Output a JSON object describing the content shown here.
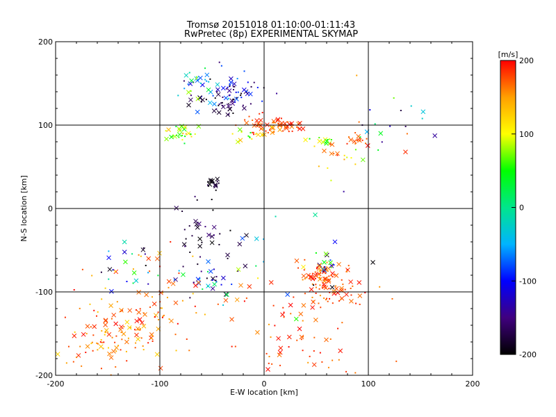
{
  "chart_data": {
    "type": "scatter",
    "title": "Tromsø 20151018 01:10:00-01:11:43",
    "subtitle": "RwPretec (8p) EXPERIMENTAL SKYMAP",
    "xlabel": "E-W location [km]",
    "ylabel": "N-S location [km]",
    "xlim": [
      -200,
      200
    ],
    "ylim": [
      -200,
      200
    ],
    "x_ticks": [
      "-200",
      "-100",
      "0",
      "100",
      "200"
    ],
    "y_ticks": [
      "-200",
      "-100",
      "0",
      "100",
      "200"
    ],
    "grid_lines": [
      -100,
      0,
      100
    ],
    "colorbar": {
      "label": "[m/s]",
      "range": [
        -200,
        200
      ],
      "ticks": [
        "200",
        "100",
        "0",
        "-100",
        "-200"
      ],
      "colors": [
        "#000000",
        "#40007f",
        "#0000ff",
        "#00b4ff",
        "#00e68c",
        "#00ff00",
        "#ffff00",
        "#ffa000",
        "#ff0000"
      ]
    },
    "markers": {
      "x": "meteor echo (large)",
      "dot": "meteor echo (small)"
    },
    "clusters": [
      {
        "cx": -45,
        "cy": 145,
        "sx": 18,
        "sy": 12,
        "n": 40,
        "vmin": -200,
        "vmax": -30
      },
      {
        "cx": -20,
        "cy": 140,
        "sx": 15,
        "sy": 8,
        "n": 30,
        "vmin": -200,
        "vmax": -60
      },
      {
        "cx": -40,
        "cy": 122,
        "sx": 8,
        "sy": 6,
        "n": 25,
        "vmin": -200,
        "vmax": -150
      },
      {
        "cx": -70,
        "cy": 150,
        "sx": 10,
        "sy": 10,
        "n": 15,
        "vmin": -80,
        "vmax": 100
      },
      {
        "cx": 0,
        "cy": 100,
        "sx": 12,
        "sy": 6,
        "n": 45,
        "vmin": 150,
        "vmax": 200
      },
      {
        "cx": 25,
        "cy": 98,
        "sx": 8,
        "sy": 3,
        "n": 25,
        "vmin": 150,
        "vmax": 200
      },
      {
        "cx": -80,
        "cy": 90,
        "sx": 8,
        "sy": 6,
        "n": 30,
        "vmin": 30,
        "vmax": 140
      },
      {
        "cx": -15,
        "cy": 88,
        "sx": 14,
        "sy": 5,
        "n": 18,
        "vmin": 40,
        "vmax": 140
      },
      {
        "cx": 55,
        "cy": 80,
        "sx": 8,
        "sy": 3,
        "n": 12,
        "vmin": 40,
        "vmax": 120
      },
      {
        "cx": 90,
        "cy": 80,
        "sx": 10,
        "sy": 5,
        "n": 18,
        "vmin": 150,
        "vmax": 200
      },
      {
        "cx": 75,
        "cy": 60,
        "sx": 20,
        "sy": 12,
        "n": 16,
        "vmin": 50,
        "vmax": 200
      },
      {
        "cx": -48,
        "cy": 30,
        "sx": 3,
        "sy": 4,
        "n": 18,
        "vmin": -200,
        "vmax": -170
      },
      {
        "cx": -130,
        "cy": -70,
        "sx": 20,
        "sy": 15,
        "n": 30,
        "vmin": -200,
        "vmax": 200
      },
      {
        "cx": -60,
        "cy": -35,
        "sx": 20,
        "sy": 20,
        "n": 40,
        "vmin": -200,
        "vmax": -150
      },
      {
        "cx": -55,
        "cy": -85,
        "sx": 15,
        "sy": 12,
        "n": 30,
        "vmin": -200,
        "vmax": 40
      },
      {
        "cx": -140,
        "cy": -150,
        "sx": 25,
        "sy": 22,
        "n": 110,
        "vmin": 120,
        "vmax": 200
      },
      {
        "cx": -100,
        "cy": -120,
        "sx": 20,
        "sy": 30,
        "n": 50,
        "vmin": 130,
        "vmax": 200
      },
      {
        "cx": 55,
        "cy": -80,
        "sx": 10,
        "sy": 9,
        "n": 70,
        "vmin": 150,
        "vmax": 200
      },
      {
        "cx": 70,
        "cy": -100,
        "sx": 15,
        "sy": 8,
        "n": 40,
        "vmin": 150,
        "vmax": 200
      },
      {
        "cx": 60,
        "cy": -65,
        "sx": 6,
        "sy": 6,
        "n": 15,
        "vmin": -200,
        "vmax": 160
      },
      {
        "cx": 20,
        "cy": -120,
        "sx": 35,
        "sy": 30,
        "n": 35,
        "vmin": 150,
        "vmax": 200
      },
      {
        "cx": 30,
        "cy": -170,
        "sx": 35,
        "sy": 18,
        "n": 35,
        "vmin": 150,
        "vmax": 200
      },
      {
        "cx": 0,
        "cy": -40,
        "sx": 40,
        "sy": 40,
        "n": 20,
        "vmin": -200,
        "vmax": 200
      },
      {
        "cx": 120,
        "cy": 100,
        "sx": 25,
        "sy": 20,
        "n": 20,
        "vmin": -200,
        "vmax": 200
      }
    ]
  }
}
